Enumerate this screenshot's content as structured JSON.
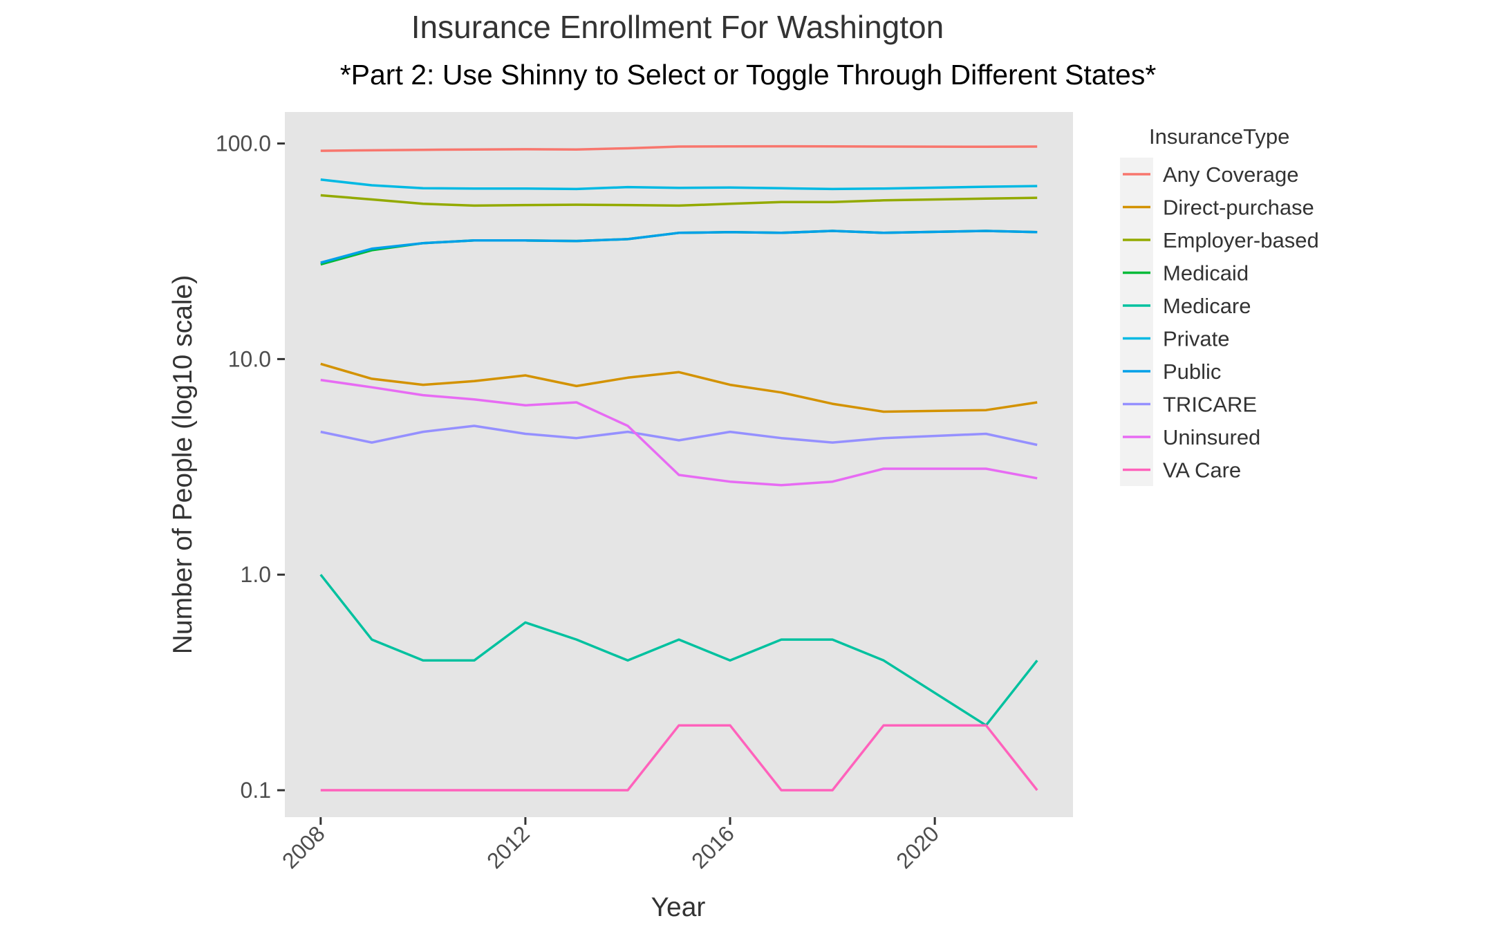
{
  "chart_data": {
    "type": "line",
    "title": "Insurance Enrollment For Washington",
    "subtitle": "*Part 2: Use Shinny to Select or Toggle Through Different States*",
    "xlabel": "Year",
    "ylabel": "Number of People (log10 scale)",
    "y_scale": "log10",
    "xlim": [
      2007.3,
      2022.7
    ],
    "ylim": [
      0.075,
      140
    ],
    "x_ticks": [
      2008,
      2012,
      2016,
      2020
    ],
    "x_tick_labels": [
      "2008",
      "2012",
      "2016",
      "2020"
    ],
    "y_ticks": [
      0.1,
      1,
      10,
      100
    ],
    "y_tick_labels": [
      "0.1",
      "1.0",
      "10.0",
      "100.0"
    ],
    "grid": false,
    "panel_background": "#e5e5e5",
    "legend": {
      "title": "InsuranceType",
      "position": "right"
    },
    "x": [
      2008,
      2009,
      2010,
      2011,
      2012,
      2013,
      2014,
      2015,
      2016,
      2017,
      2018,
      2019,
      2021,
      2022
    ],
    "series": [
      {
        "name": "Any Coverage",
        "color": "#F8766D",
        "values": [
          92.5,
          93.0,
          93.5,
          93.8,
          94.0,
          93.8,
          95.0,
          96.8,
          97.0,
          97.1,
          96.9,
          96.8,
          96.6,
          96.8
        ]
      },
      {
        "name": "Direct-purchase",
        "color": "#D39200",
        "values": [
          9.5,
          8.1,
          7.6,
          7.9,
          8.4,
          7.5,
          8.2,
          8.7,
          7.6,
          7.0,
          6.2,
          5.7,
          5.8,
          6.3
        ]
      },
      {
        "name": "Employer-based",
        "color": "#93AA00",
        "values": [
          57.5,
          55.0,
          52.5,
          51.5,
          51.8,
          52.0,
          51.8,
          51.5,
          52.5,
          53.5,
          53.5,
          54.5,
          55.5,
          56.0
        ]
      },
      {
        "name": "Medicaid",
        "color": "#00BA38",
        "values": [
          27.5,
          32.0,
          34.5,
          35.5,
          35.5,
          35.3,
          36.0,
          38.5,
          38.8,
          38.5,
          39.3,
          38.5,
          39.3,
          38.8
        ]
      },
      {
        "name": "Medicare",
        "color": "#00C19F",
        "values": [
          1.0,
          0.5,
          0.4,
          0.4,
          0.6,
          0.5,
          0.4,
          0.5,
          0.4,
          0.5,
          0.5,
          0.4,
          0.2,
          0.4
        ]
      },
      {
        "name": "Private",
        "color": "#00B9E3",
        "values": [
          68.0,
          64.0,
          62.0,
          61.8,
          61.8,
          61.5,
          62.8,
          62.3,
          62.5,
          62.0,
          61.5,
          61.8,
          63.0,
          63.5
        ]
      },
      {
        "name": "Public",
        "color": "#00A0E8",
        "values": [
          28.0,
          32.5,
          34.5,
          35.5,
          35.5,
          35.3,
          36.0,
          38.5,
          38.8,
          38.5,
          39.3,
          38.5,
          39.3,
          38.8
        ]
      },
      {
        "name": "TRICARE",
        "color": "#9590FF",
        "values": [
          4.6,
          4.1,
          4.6,
          4.9,
          4.5,
          4.3,
          4.6,
          4.2,
          4.6,
          4.3,
          4.1,
          4.3,
          4.5,
          4.0
        ]
      },
      {
        "name": "Uninsured",
        "color": "#E76BF3",
        "values": [
          8.0,
          7.4,
          6.8,
          6.5,
          6.1,
          6.3,
          4.9,
          2.9,
          2.7,
          2.6,
          2.7,
          3.1,
          3.1,
          2.8
        ]
      },
      {
        "name": "VA Care",
        "color": "#FF62BC",
        "values": [
          0.1,
          0.1,
          0.1,
          0.1,
          0.1,
          0.1,
          0.1,
          0.2,
          0.2,
          0.1,
          0.1,
          0.2,
          0.2,
          0.1
        ]
      }
    ]
  }
}
